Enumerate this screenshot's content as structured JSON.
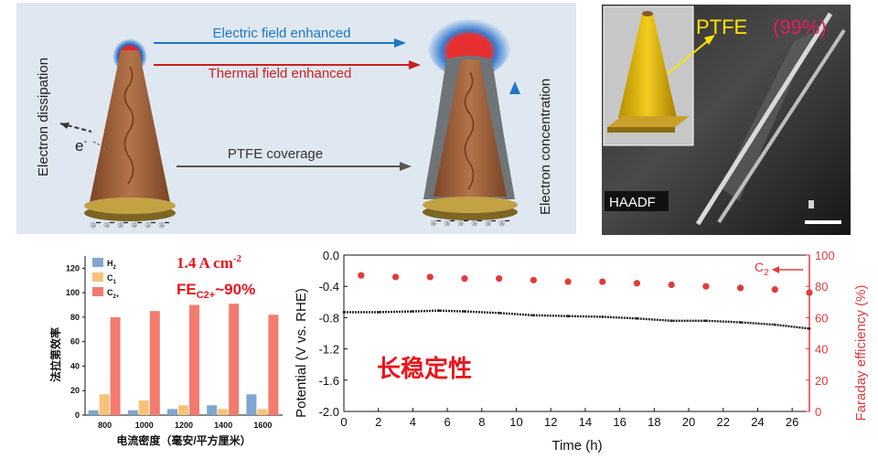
{
  "schematic": {
    "arrow_top": "Electric field enhanced",
    "arrow_mid": "Thermal field enhanced",
    "arrow_bottom": "PTFE coverage",
    "left_label": "Electron dissipation",
    "right_label": "Electron concentration",
    "electron": "e",
    "electron_sup": "-",
    "electron_row": "e⁻ e⁻ e⁻ e⁻ e⁻ e⁻",
    "colors": {
      "electric": "#1f74c8",
      "thermal": "#cc1f1f",
      "coverage_arrow": "#555555",
      "cone": "#a0623e",
      "base": "#b89a3c"
    }
  },
  "tem": {
    "label_ptfe": "PTFE",
    "label_pct": "(99%)",
    "haadf": "HAADF",
    "colors": {
      "ptfe_text": "#ffe400",
      "pct_text": "#e0205a"
    }
  },
  "bar_chart_data": {
    "type": "bar",
    "categories": [
      "800",
      "1000",
      "1200",
      "1400",
      "1600"
    ],
    "series": [
      {
        "name": "H2",
        "label": "H",
        "sub": "2",
        "color": "#7fa6cf",
        "values": [
          4,
          4,
          5,
          8,
          17
        ]
      },
      {
        "name": "C1",
        "label": "C",
        "sub": "1",
        "color": "#f8c27a",
        "values": [
          17,
          12,
          8,
          5,
          5
        ]
      },
      {
        "name": "C2+",
        "label": "C",
        "sub": "2+",
        "color": "#f37b6d",
        "values": [
          80,
          85,
          90,
          91,
          82
        ]
      }
    ],
    "ylim": [
      0,
      130
    ],
    "yticks": [
      0,
      20,
      40,
      60,
      80,
      100,
      120
    ],
    "xlabel": "电流密度（毫安/平方厘米）",
    "ylabel": "法拉第效率",
    "annotation_line1": "1.4 A cm",
    "annotation_line1_sup": "-2",
    "annotation_line2_prefix": "FE",
    "annotation_line2_sub": "C2+",
    "annotation_line2_suffix": "~90%",
    "annotation_color": "#e8141c"
  },
  "chart_data": {
    "type": "scatter",
    "xlabel": "Time (h)",
    "ylabel_left": "Potential (V vs. RHE)",
    "ylabel_right": "Faraday efficiency (%)",
    "xlim": [
      0,
      27
    ],
    "xticks": [
      0,
      2,
      4,
      6,
      8,
      10,
      12,
      14,
      16,
      18,
      20,
      22,
      24,
      26
    ],
    "ylim_left": [
      -2.0,
      0.0
    ],
    "yticks_left": [
      "0.0",
      "-0.4",
      "-0.8",
      "-1.2",
      "-1.6",
      "-2.0"
    ],
    "ylim_right": [
      0,
      100
    ],
    "yticks_right": [
      "0",
      "20",
      "40",
      "60",
      "80",
      "100"
    ],
    "potential": {
      "x": [
        0,
        2,
        4,
        5.5,
        7,
        9,
        11,
        13,
        15,
        17,
        19,
        21,
        23,
        25,
        27
      ],
      "y": [
        -0.73,
        -0.73,
        -0.72,
        -0.71,
        -0.72,
        -0.74,
        -0.77,
        -0.78,
        -0.79,
        -0.81,
        -0.84,
        -0.84,
        -0.86,
        -0.89,
        -0.94
      ]
    },
    "fe_c2": {
      "name": "C2",
      "label": "C",
      "sub": "2",
      "x": [
        1,
        3,
        5,
        7,
        9,
        11,
        13,
        15,
        17,
        19,
        21,
        23,
        25,
        27
      ],
      "y": [
        87,
        86,
        86,
        85,
        85,
        84,
        83,
        83,
        82,
        81,
        80,
        79,
        78,
        76
      ]
    },
    "annotation": "长稳定性",
    "colors": {
      "potential": "#222222",
      "fe": "#e23a3a",
      "right_axis": "#e23a3a",
      "annotation": "#e8141c"
    }
  }
}
